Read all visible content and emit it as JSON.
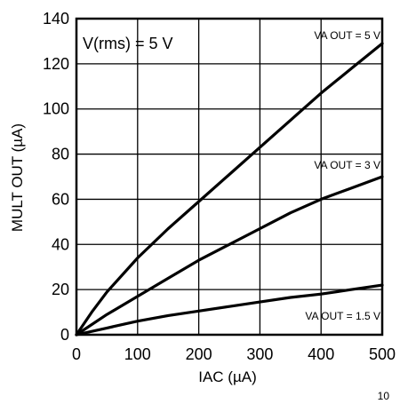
{
  "chart_data": {
    "type": "line",
    "xlabel": "IAC (µA)",
    "ylabel": "MULT OUT (µA)",
    "xlim": [
      0,
      500
    ],
    "ylim": [
      0,
      140
    ],
    "xticks": [
      0,
      100,
      200,
      300,
      400,
      500
    ],
    "yticks": [
      0,
      20,
      40,
      60,
      80,
      100,
      120,
      140
    ],
    "grid": true,
    "annotation": "V(rms) = 5 V",
    "series": [
      {
        "name": "VA OUT = 5 V",
        "x": [
          0,
          25,
          50,
          100,
          150,
          200,
          250,
          300,
          350,
          400,
          450,
          500
        ],
        "y": [
          0,
          10,
          19,
          34,
          47,
          59,
          71,
          83,
          95,
          107,
          118,
          129
        ]
      },
      {
        "name": "VA OUT = 3 V",
        "x": [
          0,
          50,
          100,
          150,
          200,
          250,
          300,
          350,
          400,
          450,
          500
        ],
        "y": [
          0,
          9,
          17,
          25,
          33,
          40,
          47,
          54,
          60,
          65,
          70
        ]
      },
      {
        "name": "VA OUT = 1.5 V",
        "x": [
          0,
          50,
          100,
          150,
          200,
          250,
          300,
          350,
          400,
          450,
          500
        ],
        "y": [
          0,
          3,
          6,
          8.5,
          10.5,
          12.5,
          14.5,
          16.5,
          18,
          20,
          22
        ]
      }
    ]
  },
  "page_number": "10",
  "colors": {
    "line": "#000000",
    "grid": "#000000",
    "background": "#ffffff"
  }
}
